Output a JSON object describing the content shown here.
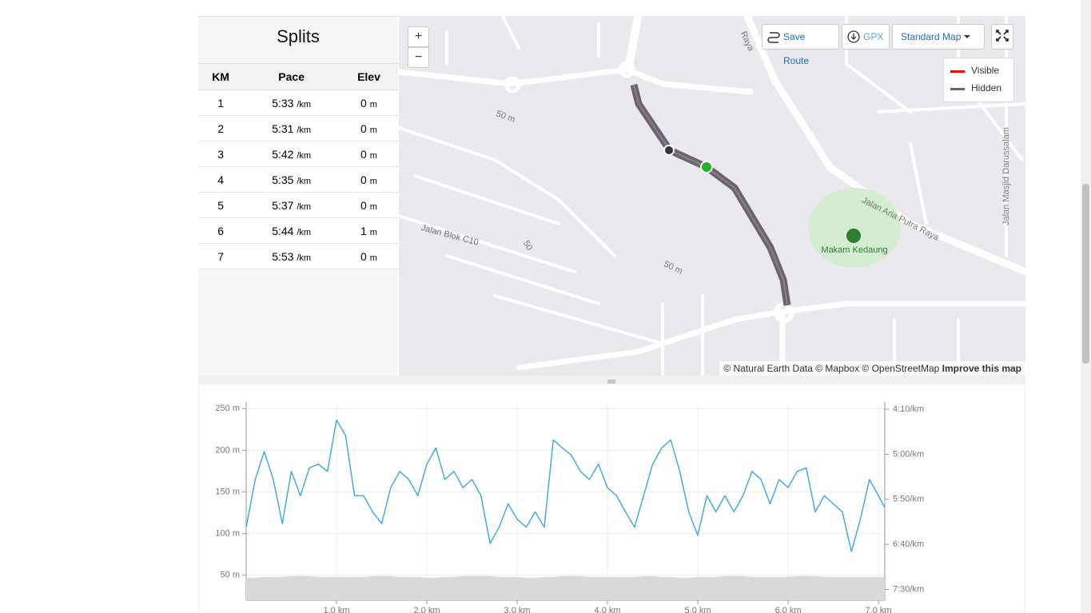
{
  "splits": {
    "title": "Splits",
    "columns": [
      "KM",
      "Pace",
      "Elev"
    ],
    "rows": [
      {
        "km": "1",
        "pace": "5:33",
        "pace_unit": "/km",
        "elev": "0",
        "elev_unit": "m"
      },
      {
        "km": "2",
        "pace": "5:31",
        "pace_unit": "/km",
        "elev": "0",
        "elev_unit": "m"
      },
      {
        "km": "3",
        "pace": "5:42",
        "pace_unit": "/km",
        "elev": "0",
        "elev_unit": "m"
      },
      {
        "km": "4",
        "pace": "5:35",
        "pace_unit": "/km",
        "elev": "0",
        "elev_unit": "m"
      },
      {
        "km": "5",
        "pace": "5:37",
        "pace_unit": "/km",
        "elev": "0",
        "elev_unit": "m"
      },
      {
        "km": "6",
        "pace": "5:44",
        "pace_unit": "/km",
        "elev": "1",
        "elev_unit": "m"
      },
      {
        "km": "7",
        "pace": "5:53",
        "pace_unit": "/km",
        "elev": "0",
        "elev_unit": "m"
      }
    ]
  },
  "map": {
    "zoom_in": "+",
    "zoom_out": "−",
    "save_route": "Save Route",
    "gpx": "GPX",
    "map_style": "Standard Map",
    "legend": [
      "Visible",
      "Hidden"
    ],
    "labels": [
      "50 m",
      "50",
      "50 m",
      "Jalan Blok C10",
      "Makam Kedaung",
      "Jalan Aria Putra Raya",
      "Jalan Masjid Darussalam",
      "Raya"
    ],
    "attribution": "© Natural Earth Data © Mapbox © OpenStreetMap",
    "improve": "Improve this map"
  },
  "chart_data": {
    "type": "line",
    "x": [
      0,
      0.1,
      0.2,
      0.3,
      0.4,
      0.5,
      0.6,
      0.7,
      0.8,
      0.9,
      1.0,
      1.1,
      1.2,
      1.3,
      1.4,
      1.5,
      1.6,
      1.7,
      1.8,
      1.9,
      2.0,
      2.1,
      2.2,
      2.3,
      2.4,
      2.5,
      2.6,
      2.7,
      2.8,
      2.9,
      3.0,
      3.1,
      3.2,
      3.3,
      3.4,
      3.5,
      3.6,
      3.7,
      3.8,
      3.9,
      4.0,
      4.1,
      4.2,
      4.3,
      4.4,
      4.5,
      4.6,
      4.7,
      4.8,
      4.9,
      5.0,
      5.1,
      5.2,
      5.3,
      5.4,
      5.5,
      5.6,
      5.7,
      5.8,
      5.9,
      6.0,
      6.1,
      6.2,
      6.3,
      6.4,
      6.5,
      6.6,
      6.7,
      6.8,
      6.9,
      7.0,
      7.07
    ],
    "series": [
      {
        "type": "area",
        "color": "#d9d9d9",
        "values": [
          47,
          47,
          48,
          48,
          48,
          49,
          49,
          49,
          48,
          48,
          48,
          48,
          48,
          48,
          49,
          49,
          49,
          48,
          48,
          48,
          47,
          47,
          48,
          48,
          49,
          49,
          49,
          49,
          48,
          48,
          48,
          47,
          47,
          48,
          48,
          49,
          49,
          49,
          48,
          48,
          48,
          48,
          48,
          48,
          49,
          49,
          48,
          48,
          47,
          47,
          48,
          48,
          48,
          49,
          49,
          49,
          48,
          48,
          48,
          48,
          48,
          49,
          49,
          49,
          48,
          48,
          48,
          48,
          48,
          48,
          48,
          48
        ]
      },
      {
        "type": "line",
        "color": "#3aa8dc",
        "axis": "y2",
        "values": [
          381,
          328,
          297,
          328,
          377,
          319,
          346,
          315,
          311,
          319,
          262,
          279,
          346,
          346,
          364,
          377,
          337,
          319,
          328,
          346,
          311,
          293,
          328,
          319,
          337,
          328,
          346,
          399,
          381,
          355,
          372,
          381,
          364,
          381,
          284,
          293,
          301,
          319,
          328,
          311,
          337,
          346,
          364,
          381,
          346,
          311,
          293,
          284,
          319,
          364,
          390,
          346,
          364,
          346,
          364,
          346,
          319,
          328,
          355,
          328,
          337,
          319,
          315,
          364,
          346,
          355,
          364,
          408,
          372,
          328,
          346,
          359
        ]
      }
    ],
    "xlim": [
      0,
      7.07
    ],
    "xticks": [
      {
        "value": 1,
        "label": "1.0 km"
      },
      {
        "value": 2,
        "label": "2.0 km"
      },
      {
        "value": 3,
        "label": "3.0 km"
      },
      {
        "value": 4,
        "label": "4.0 km"
      },
      {
        "value": 5,
        "label": "5.0 km"
      },
      {
        "value": 6,
        "label": "6.0 km"
      },
      {
        "value": 7,
        "label": "7.0 km"
      }
    ],
    "ylim": [
      20,
      258
    ],
    "yticks": [
      {
        "value": 250,
        "label": "250 m"
      },
      {
        "value": 200,
        "label": "200 m"
      },
      {
        "value": 150,
        "label": "150 m"
      },
      {
        "value": 100,
        "label": "100 m"
      },
      {
        "value": 50,
        "label": "50 m"
      }
    ],
    "y2lim": [
      242,
      462
    ],
    "y2ticks": [
      {
        "value": 250,
        "label": "4:10/km"
      },
      {
        "value": 300,
        "label": "5:00/km"
      },
      {
        "value": 350,
        "label": "5:50/km"
      },
      {
        "value": 400,
        "label": "6:40/km"
      },
      {
        "value": 450,
        "label": "7:30/km"
      }
    ],
    "grid": true
  }
}
